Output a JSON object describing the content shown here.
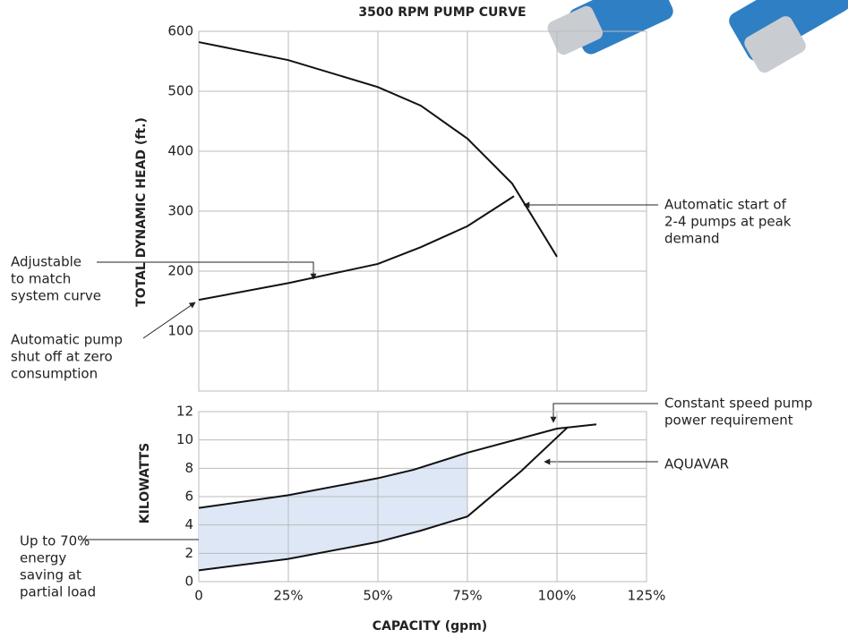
{
  "chart_data": [
    {
      "type": "line",
      "title": "3500 RPM PUMP CURVE",
      "y_label": "TOTAL DYNAMIC HEAD (ft.)",
      "xlim": [
        0,
        125
      ],
      "ylim": [
        0,
        600
      ],
      "yticks": [
        100,
        200,
        300,
        400,
        500,
        600
      ],
      "grid": true,
      "series": [
        {
          "name": "Pump curve",
          "color": "#111111",
          "x": [
            0,
            25,
            50,
            62,
            75,
            87.5,
            100
          ],
          "values": [
            582,
            552,
            507,
            476,
            421,
            346,
            224
          ]
        },
        {
          "name": "System curve",
          "color": "#111111",
          "x": [
            0,
            25,
            50,
            62,
            75,
            88
          ],
          "values": [
            152,
            180,
            212,
            240,
            275,
            325
          ]
        }
      ],
      "annotations": [
        {
          "lines": [
            "Adjustable",
            "to match",
            "system curve"
          ]
        },
        {
          "lines": [
            "Automatic pump",
            "shut off at zero",
            "consumption"
          ]
        },
        {
          "lines": [
            "Automatic start of",
            "2-4 pumps at peak",
            "demand"
          ]
        }
      ]
    },
    {
      "type": "line",
      "y_label": "KILOWATTS",
      "x_label": "CAPACITY (gpm)",
      "xlim": [
        0,
        125
      ],
      "xticks": [
        0,
        {
          "value": 25,
          "label": "25%"
        },
        {
          "value": 50,
          "label": "50%"
        },
        {
          "value": 75,
          "label": "75%"
        },
        {
          "value": 100,
          "label": "100%"
        },
        {
          "value": 125,
          "label": "125%"
        }
      ],
      "ylim": [
        0,
        12
      ],
      "yticks": [
        0,
        2,
        4,
        6,
        8,
        10,
        12
      ],
      "grid": true,
      "fill_color": "#dde7f5",
      "fill_to": 75,
      "series": [
        {
          "name": "Constant speed pump power requirement",
          "color": "#111111",
          "x": [
            0,
            25,
            50,
            60,
            75,
            100,
            111
          ],
          "values": [
            5.2,
            6.1,
            7.3,
            7.9,
            9.1,
            10.8,
            11.1
          ]
        },
        {
          "name": "AQUAVAR",
          "color": "#111111",
          "x": [
            0,
            25,
            50,
            62,
            75,
            90,
            103
          ],
          "values": [
            0.8,
            1.6,
            2.8,
            3.6,
            4.6,
            7.8,
            10.9
          ]
        }
      ],
      "annotations": [
        {
          "lines": [
            "Constant speed pump",
            "power requirement"
          ]
        },
        {
          "lines": [
            "AQUAVAR"
          ]
        },
        {
          "lines": [
            "Up to 70%",
            "energy",
            "saving at",
            "partial load"
          ]
        }
      ]
    }
  ]
}
